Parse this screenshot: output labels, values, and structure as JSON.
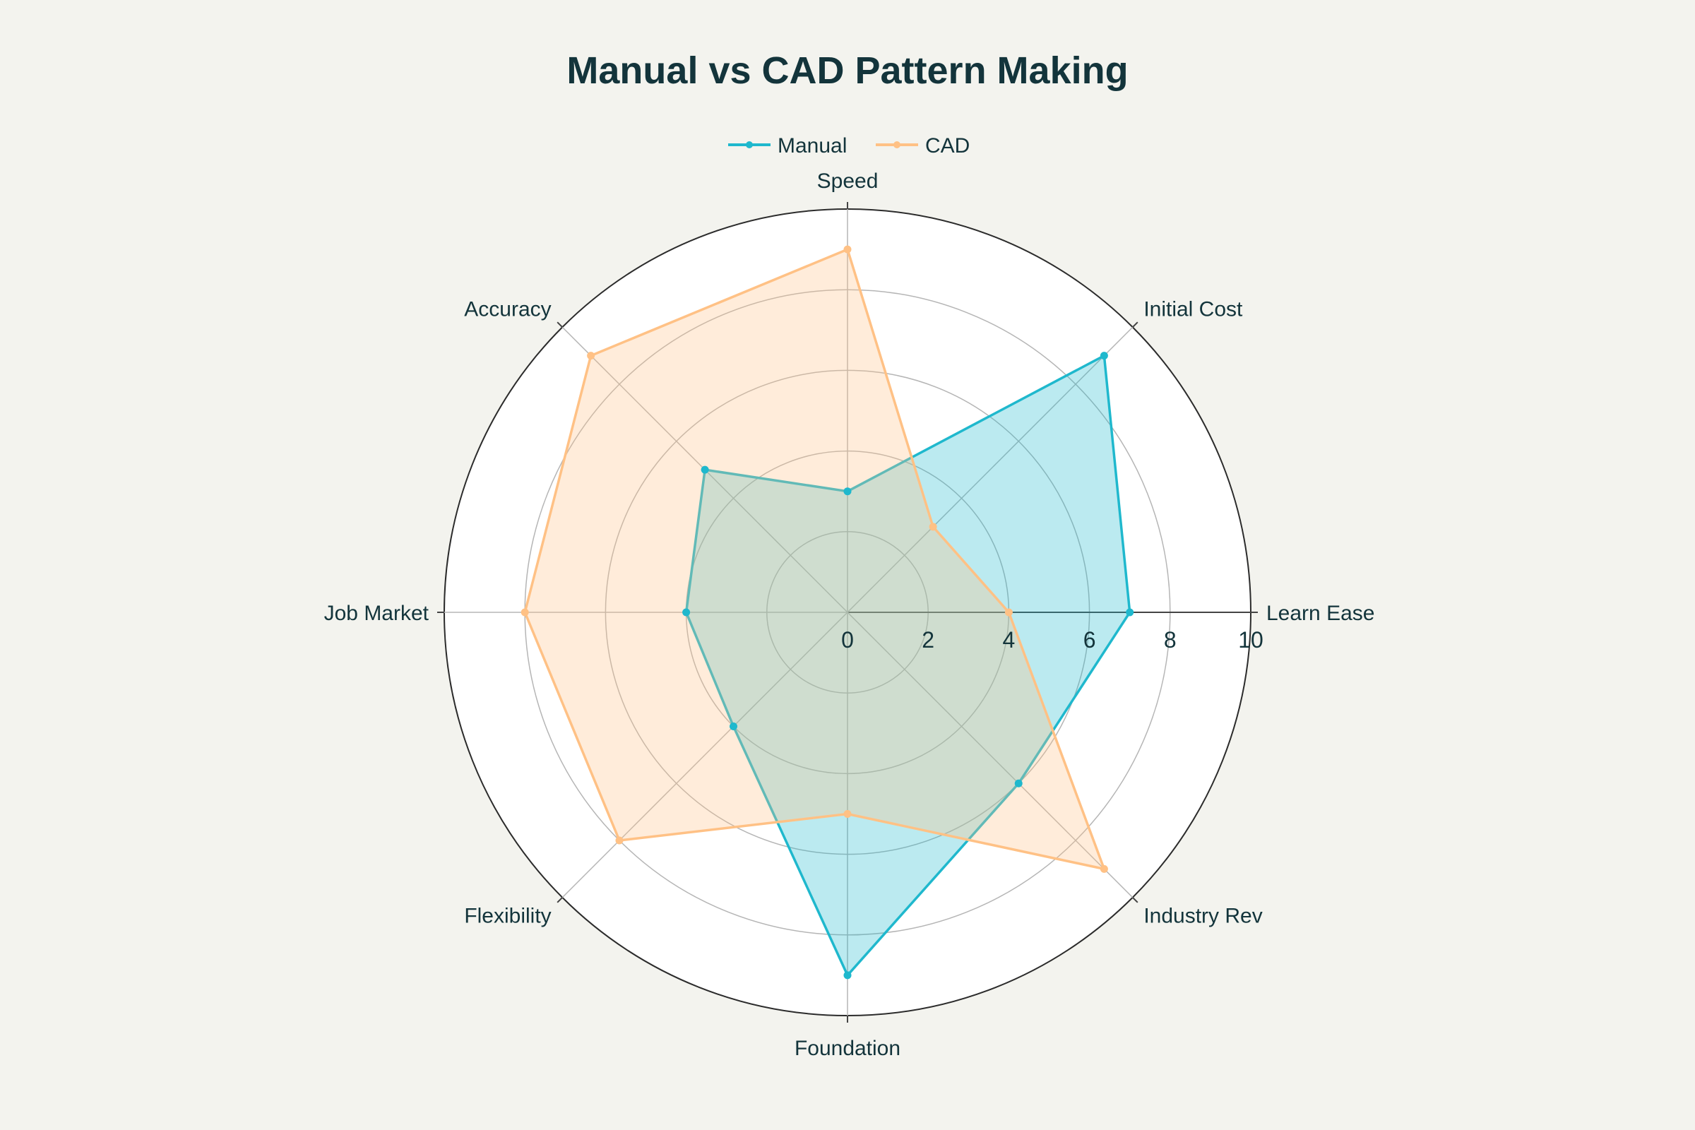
{
  "chart_data": {
    "type": "radar",
    "title": "Manual vs CAD Pattern Making",
    "categories": [
      "Learn Ease",
      "Initial Cost",
      "Speed",
      "Accuracy",
      "Job Market",
      "Flexibility",
      "Foundation",
      "Industry Rev"
    ],
    "radial_range": [
      0,
      10
    ],
    "radial_ticks": [
      "0",
      "2",
      "4",
      "6",
      "8",
      "10"
    ],
    "series": [
      {
        "name": "Manual",
        "values": [
          7,
          9,
          3,
          5,
          4,
          4,
          9,
          6
        ],
        "color": "#1fb8cd"
      },
      {
        "name": "CAD",
        "values": [
          4,
          3,
          9,
          9,
          8,
          8,
          5,
          9
        ],
        "color": "#ffc185"
      }
    ],
    "legend": {
      "position": "top-center",
      "orientation": "horizontal"
    },
    "grid": true
  }
}
